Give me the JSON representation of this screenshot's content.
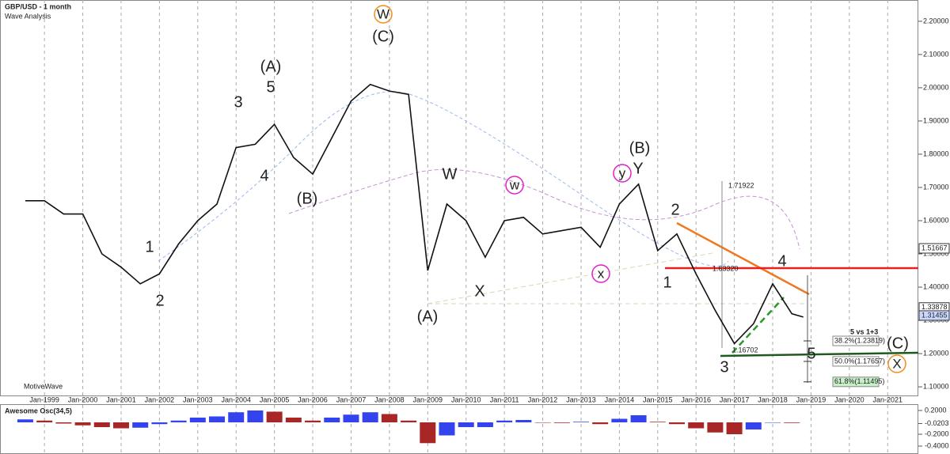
{
  "chart_data": [
    {
      "type": "line",
      "title": "GBP/USD - 1 month",
      "subtitle": "Wave Analysis",
      "footer": "MotiveWave",
      "x": [
        1998.5,
        1999.0,
        1999.5,
        2000.0,
        2000.5,
        2001.0,
        2001.5,
        2002.0,
        2002.5,
        2003.0,
        2003.5,
        2004.0,
        2004.5,
        2005.0,
        2005.5,
        2006.0,
        2006.5,
        2007.0,
        2007.5,
        2008.0,
        2008.5,
        2009.0,
        2009.5,
        2010.0,
        2010.5,
        2011.0,
        2011.5,
        2012.0,
        2012.5,
        2013.0,
        2013.5,
        2014.0,
        2014.5,
        2015.0,
        2015.5,
        2016.0,
        2016.5,
        2017.0,
        2017.5,
        2018.0,
        2018.5,
        2018.8
      ],
      "values": [
        1.66,
        1.66,
        1.62,
        1.62,
        1.5,
        1.46,
        1.41,
        1.44,
        1.53,
        1.6,
        1.65,
        1.82,
        1.83,
        1.89,
        1.79,
        1.74,
        1.85,
        1.96,
        2.01,
        1.99,
        1.98,
        1.45,
        1.65,
        1.6,
        1.49,
        1.6,
        1.61,
        1.56,
        1.57,
        1.58,
        1.52,
        1.65,
        1.71,
        1.51,
        1.56,
        1.44,
        1.33,
        1.23,
        1.29,
        1.41,
        1.32,
        1.31
      ],
      "color": "#111111",
      "xlim": [
        1997.84,
        2021.8
      ],
      "xticks": [
        {
          "value": 1999,
          "label": "Jan-1999"
        },
        {
          "value": 2000,
          "label": "Jan-2000"
        },
        {
          "value": 2001,
          "label": "Jan-2001"
        },
        {
          "value": 2002,
          "label": "Jan-2002"
        },
        {
          "value": 2003,
          "label": "Jan-2003"
        },
        {
          "value": 2004,
          "label": "Jan-2004"
        },
        {
          "value": 2005,
          "label": "Jan-2005"
        },
        {
          "value": 2006,
          "label": "Jan-2006"
        },
        {
          "value": 2007,
          "label": "Jan-2007"
        },
        {
          "value": 2008,
          "label": "Jan-2008"
        },
        {
          "value": 2009,
          "label": "Jan-2009"
        },
        {
          "value": 2010,
          "label": "Jan-2010"
        },
        {
          "value": 2011,
          "label": "Jan-2011"
        },
        {
          "value": 2012,
          "label": "Jan-2012"
        },
        {
          "value": 2013,
          "label": "Jan-2013"
        },
        {
          "value": 2014,
          "label": "Jan-2014"
        },
        {
          "value": 2015,
          "label": "Jan-2015"
        },
        {
          "value": 2016,
          "label": "Jan-2016"
        },
        {
          "value": 2017,
          "label": "Jan-2017"
        },
        {
          "value": 2018,
          "label": "Jan-2018"
        },
        {
          "value": 2019,
          "label": "Jan-2019"
        },
        {
          "value": 2020,
          "label": "Jan-2020"
        },
        {
          "value": 2021,
          "label": "Jan-2021"
        }
      ],
      "ylim": [
        1.074,
        2.264
      ],
      "yticks": [
        {
          "value": 1.1,
          "label": "1.10000"
        },
        {
          "value": 1.2,
          "label": "1.20000"
        },
        {
          "value": 1.3,
          "label": "1.30000"
        },
        {
          "value": 1.4,
          "label": "1.40000"
        },
        {
          "value": 1.5,
          "label": "1.50000"
        },
        {
          "value": 1.6,
          "label": "1.60000"
        },
        {
          "value": 1.7,
          "label": "1.70000"
        },
        {
          "value": 1.8,
          "label": "1.80000"
        },
        {
          "value": 1.9,
          "label": "1.90000"
        },
        {
          "value": 2.0,
          "label": "2.00000"
        },
        {
          "value": 2.1,
          "label": "2.10000"
        },
        {
          "value": 2.2,
          "label": "2.20000"
        }
      ],
      "grid": true,
      "price_markers": [
        {
          "value": 1.51667,
          "label": "1.51667",
          "color": "#ffffff"
        },
        {
          "value": 1.33878,
          "label": "1.33878",
          "color": "#ffffff"
        },
        {
          "value": 1.31455,
          "label": "1.31455",
          "color": "#c8d8ff"
        }
      ],
      "fib_levels": [
        {
          "value": 1.23819,
          "label": "38.2%(1.23819)"
        },
        {
          "value": 1.17657,
          "label": "50.0%(1.17657)"
        },
        {
          "value": 1.11495,
          "label": "61.8%(1.11495)"
        }
      ],
      "notes": [
        "5 vs 1+3",
        "1.71922",
        "1.63320",
        "1.16702"
      ],
      "wave_labels": [
        {
          "text": "W",
          "color": "#f08c1e",
          "circled": true
        },
        {
          "text": "(C)",
          "color": "#e0201e",
          "circled": false
        },
        {
          "text": "(A)",
          "color": "#e0201e",
          "circled": false
        },
        {
          "text": "5",
          "color": "#b48cdc",
          "circled": false
        },
        {
          "text": "3",
          "color": "#b48cdc",
          "circled": false
        },
        {
          "text": "4",
          "color": "#b48cdc",
          "circled": false
        },
        {
          "text": "(B)",
          "color": "#e0201e",
          "circled": false
        },
        {
          "text": "1",
          "color": "#b48cdc",
          "circled": false
        },
        {
          "text": "2",
          "color": "#b48cdc",
          "circled": false
        },
        {
          "text": "W",
          "color": "#b48cdc",
          "circled": false
        },
        {
          "text": "w",
          "color": "#e020c8",
          "circled": true
        },
        {
          "text": "X",
          "color": "#b48cdc",
          "circled": false
        },
        {
          "text": "(A)",
          "color": "#e0201e",
          "circled": false
        },
        {
          "text": "x",
          "color": "#e020c8",
          "circled": true
        },
        {
          "text": "y",
          "color": "#e020c8",
          "circled": true
        },
        {
          "text": "Y",
          "color": "#b48cdc",
          "circled": false
        },
        {
          "text": "(B)",
          "color": "#e0201e",
          "circled": false
        },
        {
          "text": "2",
          "color": "#b48cdc",
          "circled": false
        },
        {
          "text": "1",
          "color": "#b48cdc",
          "circled": false
        },
        {
          "text": "3",
          "color": "#b48cdc",
          "circled": false
        },
        {
          "text": "4",
          "color": "#b48cdc",
          "circled": false
        },
        {
          "text": "5",
          "color": "#b48cdc",
          "circled": false
        },
        {
          "text": "(C)",
          "color": "#e0201e",
          "circled": false
        },
        {
          "text": "X",
          "color": "#f08c1e",
          "circled": true
        }
      ]
    },
    {
      "type": "histogram",
      "title": "Awesome Osc(34,5)",
      "x": [
        1998.5,
        1999.0,
        1999.5,
        2000.0,
        2000.5,
        2001.0,
        2001.5,
        2002.0,
        2002.5,
        2003.0,
        2003.5,
        2004.0,
        2004.5,
        2005.0,
        2005.5,
        2006.0,
        2006.5,
        2007.0,
        2007.5,
        2008.0,
        2008.5,
        2009.0,
        2009.5,
        2010.0,
        2010.5,
        2011.0,
        2011.5,
        2012.0,
        2012.5,
        2013.0,
        2013.5,
        2014.0,
        2014.5,
        2015.0,
        2015.5,
        2016.0,
        2016.5,
        2017.0,
        2017.5,
        2018.0,
        2018.5
      ],
      "values": [
        0.05,
        0.03,
        -0.02,
        -0.05,
        -0.08,
        -0.1,
        -0.09,
        -0.03,
        0.03,
        0.08,
        0.1,
        0.17,
        0.2,
        0.18,
        0.08,
        0.03,
        0.08,
        0.13,
        0.17,
        0.14,
        0.03,
        -0.35,
        -0.22,
        -0.08,
        -0.08,
        0.03,
        0.04,
        0.0,
        -0.01,
        0.01,
        -0.03,
        0.06,
        0.12,
        0.01,
        -0.03,
        -0.1,
        -0.17,
        -0.2,
        -0.12,
        0.0,
        -0.01
      ],
      "up_color": "#3344ee",
      "down_color": "#a82626",
      "xlim": [
        1997.84,
        2021.8
      ],
      "ylim": [
        -0.533,
        0.293
      ],
      "yticks": [
        {
          "value": 0.2,
          "label": "0.2000"
        },
        {
          "value": -0.0203,
          "label": "-0.0203"
        },
        {
          "value": -0.2,
          "label": "-0.2000"
        },
        {
          "value": -0.4,
          "label": "-0.4000"
        }
      ]
    }
  ]
}
